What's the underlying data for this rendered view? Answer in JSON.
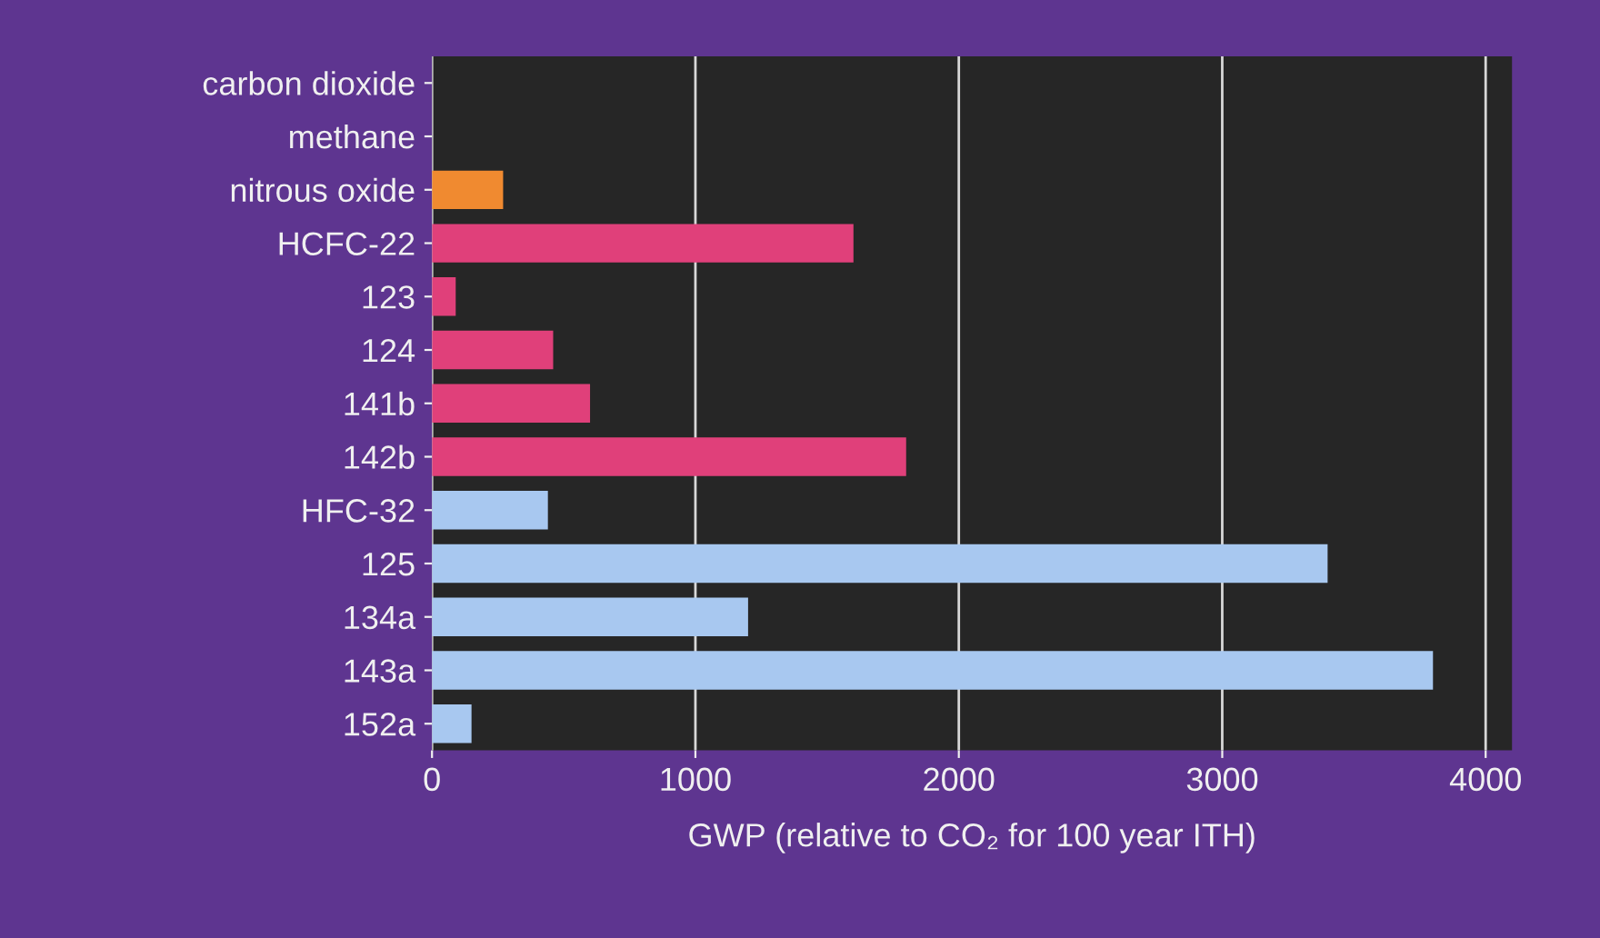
{
  "chart_data": {
    "type": "bar",
    "orientation": "horizontal",
    "categories": [
      "carbon dioxide",
      "methane",
      "nitrous oxide",
      "HCFC-22",
      "123",
      "124",
      "141b",
      "142b",
      "HFC-32",
      "125",
      "134a",
      "143a",
      "152a"
    ],
    "values": [
      null,
      null,
      270,
      1600,
      90,
      460,
      600,
      1800,
      440,
      3400,
      1200,
      3800,
      150
    ],
    "colors": [
      "#a8c8f0",
      "#a8c8f0",
      "#f08a30",
      "#e0407a",
      "#e0407a",
      "#e0407a",
      "#e0407a",
      "#e0407a",
      "#a8c8f0",
      "#a8c8f0",
      "#a8c8f0",
      "#a8c8f0",
      "#a8c8f0"
    ],
    "xlim": [
      0,
      4100
    ],
    "xticks": [
      0,
      1000,
      2000,
      3000,
      4000
    ],
    "xlabel": "GWP (relative to CO₂ for 100 year ITH)",
    "grid": "x"
  }
}
